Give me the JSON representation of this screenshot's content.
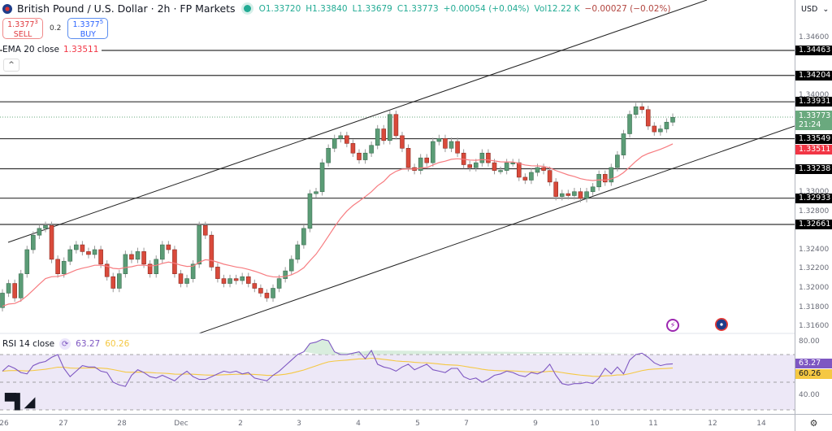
{
  "header": {
    "symbol_title": "British Pound / U.S. Dollar · 2h · FP Markets",
    "open": "O1.33720",
    "high": "H1.33840",
    "low": "L1.33679",
    "close": "C1.33773",
    "change": "+0.00054 (+0.04%)",
    "volume": "Vol12.22 K",
    "vol_change": "−0.00027 (−0.02%)"
  },
  "trade": {
    "sell_price": "1.3377",
    "sell_sup": "3",
    "sell_label": "SELL",
    "spread": "0.2",
    "buy_price": "1.3377",
    "buy_sup": "5",
    "buy_label": "BUY"
  },
  "ema": {
    "label": "EMA 20 close",
    "value": "1.33511"
  },
  "collapse_icon": "^",
  "rsi": {
    "label": "RSI 14 close",
    "value": "63.27",
    "ma_value": "60.26"
  },
  "logo": "TV",
  "price_axis": {
    "currency": "USD",
    "ticks": [
      "1.34600",
      "1.34000",
      "1.33000",
      "1.32800",
      "1.32400",
      "1.32200",
      "1.32000",
      "1.31800",
      "1.31600"
    ],
    "labels": [
      {
        "value": "1.34463",
        "type": "level"
      },
      {
        "value": "1.34204",
        "type": "level"
      },
      {
        "value": "1.33931",
        "type": "level"
      },
      {
        "value": "1.33773",
        "sub": "21:24",
        "type": "current"
      },
      {
        "value": "1.33549",
        "type": "level"
      },
      {
        "value": "1.33511",
        "type": "ema"
      },
      {
        "value": "1.33238",
        "type": "level"
      },
      {
        "value": "1.32933",
        "type": "level"
      },
      {
        "value": "1.32661",
        "type": "level"
      }
    ],
    "rsi_ticks": [
      "80.00",
      "40.00"
    ],
    "rsi_labels": [
      "63.27",
      "60.26"
    ]
  },
  "time_axis": {
    "ticks": [
      "26",
      "27",
      "28",
      "Dec",
      "2",
      "3",
      "4",
      "5",
      "7",
      "9",
      "10",
      "11",
      "12",
      "14"
    ]
  },
  "colors": {
    "up": "#5b9c76",
    "down": "#d94a3b",
    "ema": "#f77c80",
    "rsi": "#7e57c2",
    "rsi_ma": "#f5c842",
    "rsi_band": "#ede8f7"
  },
  "chart_data": [
    {
      "type": "candlestick",
      "title": "British Pound / U.S. Dollar · 2h · FP Markets",
      "xlabel": "",
      "ylabel": "USD",
      "x_ticks": [
        "26",
        "27",
        "28",
        "Dec",
        "2",
        "3",
        "4",
        "5",
        "7",
        "9",
        "10",
        "11",
        "12",
        "14"
      ],
      "ylim": [
        1.315,
        1.3485
      ],
      "horizontal_levels": [
        1.34463,
        1.34204,
        1.33931,
        1.33549,
        1.33238,
        1.32933,
        1.32661
      ],
      "last_price": 1.33773,
      "channel": {
        "upper": [
          [
            10,
            298
          ],
          [
            870,
            0
          ]
        ],
        "lower": [
          [
            245,
            410
          ],
          [
            978,
            155
          ]
        ]
      },
      "series": [
        {
          "name": "EMA 20 close",
          "last": 1.33511
        }
      ]
    },
    {
      "type": "line",
      "title": "RSI 14 close",
      "ylim": [
        30,
        90
      ],
      "bands": [
        70,
        50,
        30
      ],
      "series": [
        {
          "name": "RSI",
          "last": 63.27
        },
        {
          "name": "RSI MA",
          "last": 60.26
        }
      ]
    }
  ]
}
